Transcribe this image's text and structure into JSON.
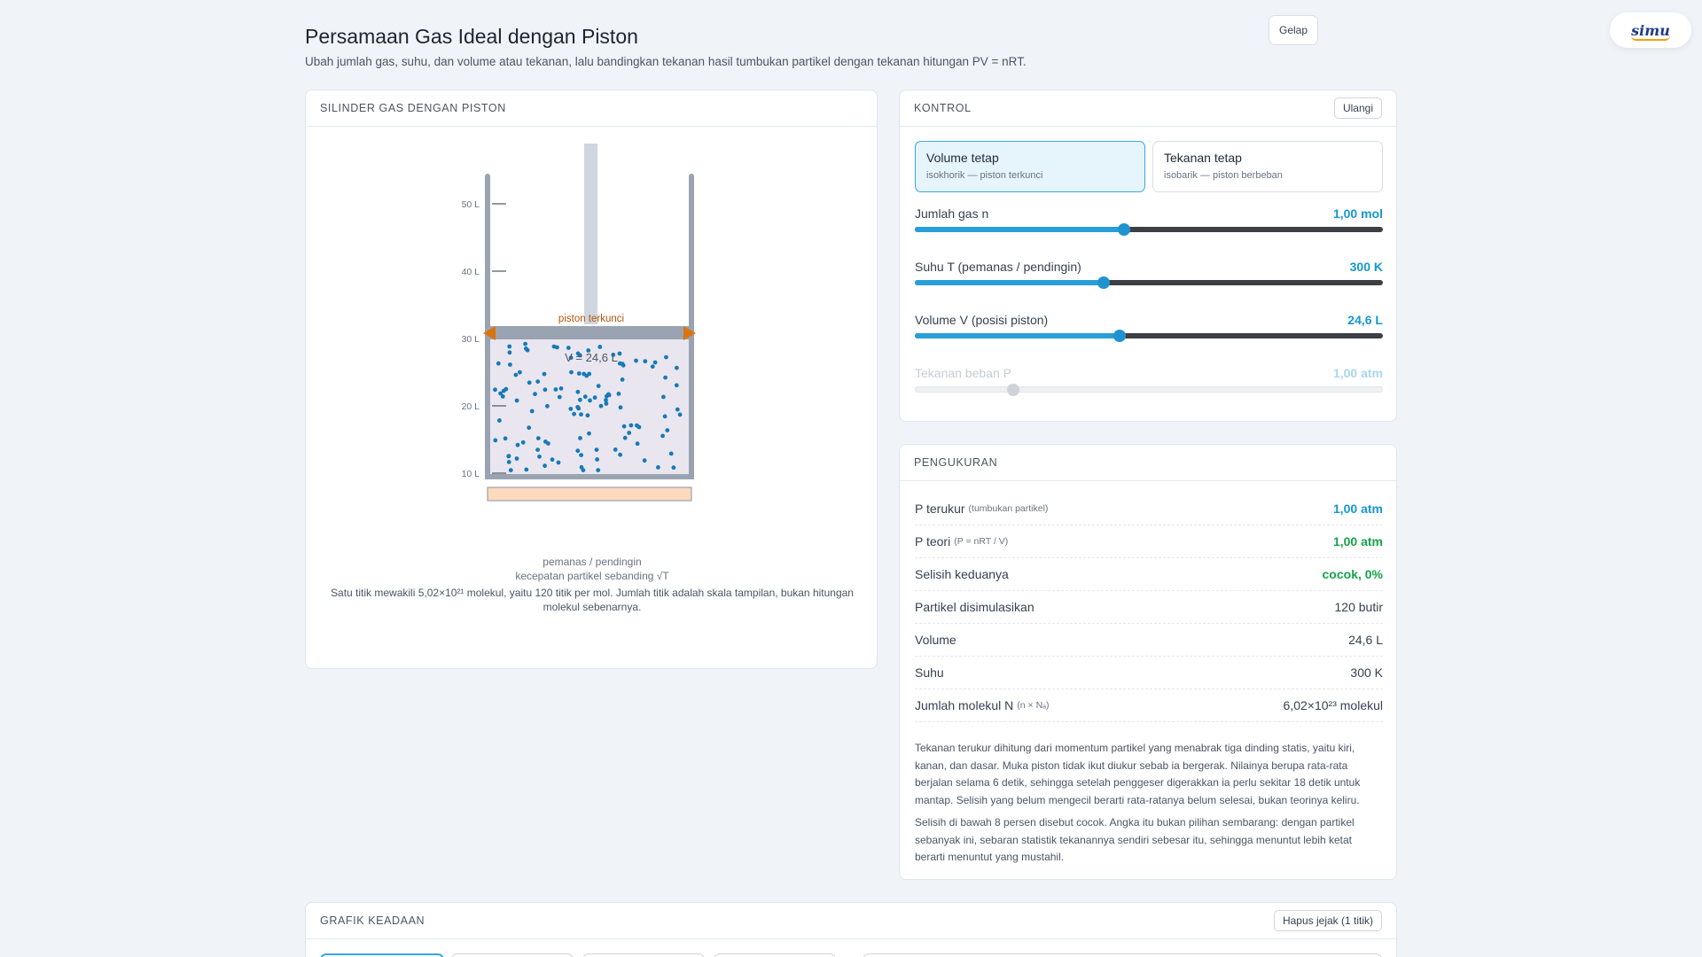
{
  "header": {
    "title": "Persamaan Gas Ideal dengan Piston",
    "subtitle": "Ubah jumlah gas, suhu, dan volume atau tekanan, lalu bandingkan tekanan hasil tumbukan partikel dengan tekanan hitungan PV = nRT.",
    "theme_button": "Gelap",
    "logo_text": "simu"
  },
  "cylinder": {
    "card_title": "SILINDER GAS DENGAN PISTON",
    "scale_labels": [
      "50 L",
      "40 L",
      "30 L",
      "20 L",
      "10 L"
    ],
    "piston_label": "piston terkunci",
    "volume_readout": "V = 24,6 L",
    "heater_label": "pemanas / pendingin",
    "speed_note": "kecepatan partikel sebanding √T",
    "caption": "Satu titik mewakili 5,02×10²¹ molekul, yaitu 120 titik per mol. Jumlah titik adalah skala tampilan, bukan hitungan molekul sebenarnya.",
    "particle_count": 120,
    "volume_value_L": 24.6,
    "colors": {
      "particle": "#1779b8",
      "arrow": "#d9750f",
      "heater": "#fdd9bd",
      "piston": "#9aa3b1"
    }
  },
  "controls": {
    "card_title": "KONTROL",
    "reset_button": "Ulangi",
    "modes": [
      {
        "title": "Volume tetap",
        "sub": "isokhorik — piston terkunci",
        "active": true
      },
      {
        "title": "Tekanan tetap",
        "sub": "isobarik — piston berbeban",
        "active": false
      }
    ],
    "sliders": [
      {
        "label": "Jumlah gas n",
        "value": "1,00 mol",
        "fraction": 0.447,
        "disabled": false
      },
      {
        "label": "Suhu T (pemanas / pendingin)",
        "value": "300 K",
        "fraction": 0.403,
        "disabled": false
      },
      {
        "label": "Volume V (posisi piston)",
        "value": "24,6 L",
        "fraction": 0.438,
        "disabled": false
      },
      {
        "label": "Tekanan beban P",
        "value": "1,00 atm",
        "fraction": 0.209,
        "disabled": true
      }
    ]
  },
  "measurements": {
    "card_title": "PENGUKURAN",
    "rows": [
      {
        "label": "P terukur",
        "small": "(tumbukan partikel)",
        "value": "1,00 atm",
        "style": "blue"
      },
      {
        "label": "P teori",
        "small": "(P = nRT / V)",
        "value": "1,00 atm",
        "style": "green"
      },
      {
        "label": "Selisih keduanya",
        "small": "",
        "value": "cocok, 0%",
        "style": "green"
      },
      {
        "label": "Partikel disimulasikan",
        "small": "",
        "value": "120 butir",
        "style": "plain"
      },
      {
        "label": "Volume",
        "small": "",
        "value": "24,6 L",
        "style": "plain"
      },
      {
        "label": "Suhu",
        "small": "",
        "value": "300 K",
        "style": "plain"
      },
      {
        "label": "Jumlah molekul N",
        "small": "(n × Nₐ)",
        "value": "6,02×10²³ molekul",
        "style": "plain"
      }
    ],
    "note1": "Tekanan terukur dihitung dari momentum partikel yang menabrak tiga dinding statis, yaitu kiri, kanan, dan dasar. Muka piston tidak ikut diukur sebab ia bergerak. Nilainya berupa rata-rata berjalan selama 6 detik, sehingga setelah penggeser digerakkan ia perlu sekitar 18 detik untuk mantap. Selisih yang belum mengecil berarti rata-ratanya belum selesai, bukan teorinya keliru.",
    "note2": "Selisih di bawah 8 persen disebut cocok. Angka itu bukan pilihan sembarang: dengan partikel sebanyak ini, sebaran statistik tekanannya sendiri sebesar itu, sehingga menuntut lebih ketat berarti menuntut yang mustahil."
  },
  "graph": {
    "card_title": "GRAFIK KEADAAN",
    "clear_button": "Hapus jejak (1 titik)"
  }
}
